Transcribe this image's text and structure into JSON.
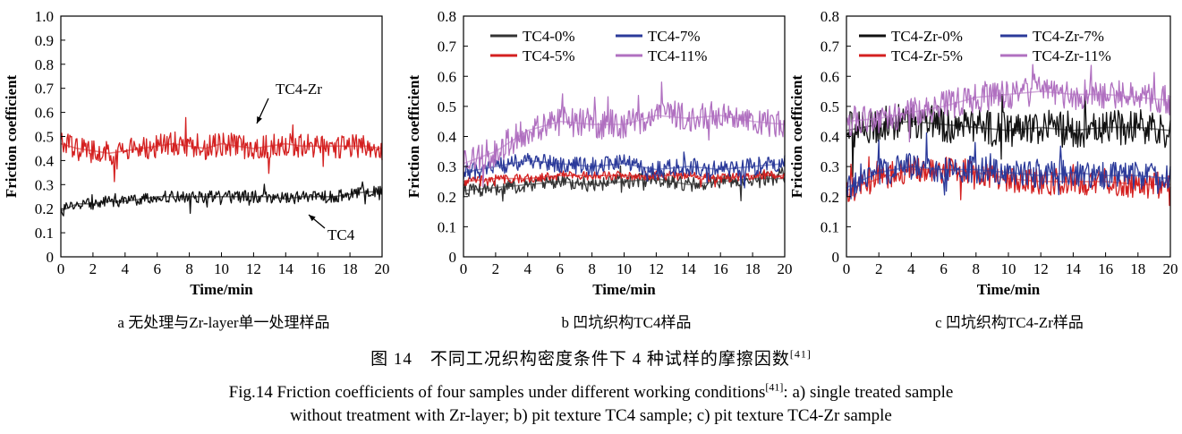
{
  "figure": {
    "caption_zh": "图 14　不同工况织构密度条件下 4 种试样的摩擦因数",
    "caption_zh_ref": "[41]",
    "caption_en_1": "Fig.14 Friction coefficients of four samples under different working conditions",
    "caption_en_ref": "[41]",
    "caption_en_2": ": a) single treated sample",
    "caption_en_3": "without treatment with Zr-layer; b) pit texture TC4 sample; c) pit texture TC4-Zr sample"
  },
  "chart_data": [
    {
      "type": "line",
      "panel_label": "a 无处理与Zr-layer单一处理样品",
      "xlabel": "Time/min",
      "ylabel": "Friction coefficient",
      "xlim": [
        0,
        20
      ],
      "ylim": [
        0,
        1.0
      ],
      "xticks": [
        0,
        2,
        4,
        6,
        8,
        10,
        12,
        14,
        16,
        18,
        20
      ],
      "yticks": [
        "0",
        "0.1",
        "0.2",
        "0.3",
        "0.4",
        "0.5",
        "0.6",
        "0.7",
        "0.8",
        "0.9",
        "1.0"
      ],
      "legend": "none",
      "annotations": [
        "TC4-Zr",
        "TC4"
      ],
      "series": [
        {
          "name": "TC4-Zr",
          "color": "#d42020",
          "x": [
            0,
            1,
            2,
            3,
            4,
            5,
            6,
            7,
            8,
            9,
            10,
            11,
            12,
            13,
            14,
            15,
            16,
            17,
            18,
            19,
            20
          ],
          "y": [
            0.47,
            0.45,
            0.44,
            0.43,
            0.44,
            0.45,
            0.46,
            0.47,
            0.46,
            0.45,
            0.47,
            0.46,
            0.45,
            0.46,
            0.47,
            0.46,
            0.46,
            0.46,
            0.46,
            0.46,
            0.45
          ],
          "noise": 0.05
        },
        {
          "name": "TC4",
          "color": "#111111",
          "x": [
            0,
            1,
            2,
            3,
            4,
            5,
            6,
            7,
            8,
            9,
            10,
            11,
            12,
            13,
            14,
            15,
            16,
            17,
            18,
            19,
            20
          ],
          "y": [
            0.19,
            0.22,
            0.22,
            0.23,
            0.23,
            0.24,
            0.25,
            0.25,
            0.25,
            0.25,
            0.25,
            0.25,
            0.25,
            0.25,
            0.24,
            0.25,
            0.25,
            0.25,
            0.26,
            0.27,
            0.27
          ],
          "noise": 0.025
        }
      ]
    },
    {
      "type": "line",
      "panel_label": "b 凹坑织构TC4样品",
      "xlabel": "Time/min",
      "ylabel": "Friction coefficient",
      "xlim": [
        0,
        20
      ],
      "ylim": [
        0,
        0.8
      ],
      "xticks": [
        0,
        2,
        4,
        6,
        8,
        10,
        12,
        14,
        16,
        18,
        20
      ],
      "yticks": [
        "0",
        "0.1",
        "0.2",
        "0.3",
        "0.4",
        "0.5",
        "0.6",
        "0.7",
        "0.8"
      ],
      "legend": "top",
      "series": [
        {
          "name": "TC4-0%",
          "color": "#333333",
          "x": [
            0,
            2,
            4,
            6,
            8,
            10,
            12,
            14,
            16,
            18,
            20
          ],
          "y": [
            0.22,
            0.23,
            0.24,
            0.25,
            0.24,
            0.25,
            0.26,
            0.24,
            0.25,
            0.26,
            0.26
          ],
          "noise": 0.025
        },
        {
          "name": "TC4-5%",
          "color": "#d42020",
          "x": [
            0,
            2,
            4,
            6,
            8,
            10,
            12,
            14,
            16,
            18,
            20
          ],
          "y": [
            0.25,
            0.26,
            0.26,
            0.27,
            0.27,
            0.27,
            0.27,
            0.27,
            0.26,
            0.27,
            0.27
          ],
          "noise": 0.015
        },
        {
          "name": "TC4-7%",
          "color": "#2b3a9a",
          "x": [
            0,
            2,
            4,
            6,
            8,
            10,
            12,
            14,
            16,
            18,
            20
          ],
          "y": [
            0.28,
            0.3,
            0.32,
            0.31,
            0.3,
            0.31,
            0.29,
            0.3,
            0.29,
            0.3,
            0.31
          ],
          "noise": 0.03
        },
        {
          "name": "TC4-11%",
          "color": "#b070c0",
          "x": [
            0,
            2,
            4,
            6,
            8,
            10,
            12,
            14,
            16,
            18,
            20
          ],
          "y": [
            0.31,
            0.35,
            0.42,
            0.45,
            0.44,
            0.44,
            0.47,
            0.46,
            0.47,
            0.45,
            0.44
          ],
          "noise": 0.05
        }
      ]
    },
    {
      "type": "line",
      "panel_label": "c 凹坑织构TC4-Zr样品",
      "xlabel": "Time/min",
      "ylabel": "Friction coefficient",
      "xlim": [
        0,
        20
      ],
      "ylim": [
        0,
        0.8
      ],
      "xticks": [
        0,
        2,
        4,
        6,
        8,
        10,
        12,
        14,
        16,
        18,
        20
      ],
      "yticks": [
        "0",
        "0.1",
        "0.2",
        "0.3",
        "0.4",
        "0.5",
        "0.6",
        "0.7",
        "0.8"
      ],
      "legend": "top",
      "series": [
        {
          "name": "TC4-Zr-0%",
          "color": "#111111",
          "x": [
            0,
            2,
            4,
            6,
            8,
            10,
            12,
            14,
            16,
            18,
            20
          ],
          "y": [
            0.42,
            0.44,
            0.45,
            0.44,
            0.43,
            0.42,
            0.43,
            0.42,
            0.43,
            0.43,
            0.42
          ],
          "noise": 0.06
        },
        {
          "name": "TC4-Zr-5%",
          "color": "#d42020",
          "x": [
            0,
            2,
            4,
            6,
            8,
            10,
            12,
            14,
            16,
            18,
            20
          ],
          "y": [
            0.22,
            0.26,
            0.29,
            0.29,
            0.28,
            0.26,
            0.25,
            0.25,
            0.25,
            0.24,
            0.24
          ],
          "noise": 0.045
        },
        {
          "name": "TC4-Zr-7%",
          "color": "#2b3a9a",
          "x": [
            0,
            2,
            4,
            6,
            8,
            10,
            12,
            14,
            16,
            18,
            20
          ],
          "y": [
            0.23,
            0.28,
            0.3,
            0.29,
            0.29,
            0.28,
            0.27,
            0.28,
            0.27,
            0.27,
            0.26
          ],
          "noise": 0.045
        },
        {
          "name": "TC4-Zr-11%",
          "color": "#b070c0",
          "x": [
            0,
            2,
            4,
            6,
            8,
            10,
            12,
            14,
            16,
            18,
            20
          ],
          "y": [
            0.45,
            0.46,
            0.48,
            0.5,
            0.53,
            0.54,
            0.55,
            0.54,
            0.54,
            0.53,
            0.52
          ],
          "noise": 0.05
        }
      ]
    }
  ]
}
